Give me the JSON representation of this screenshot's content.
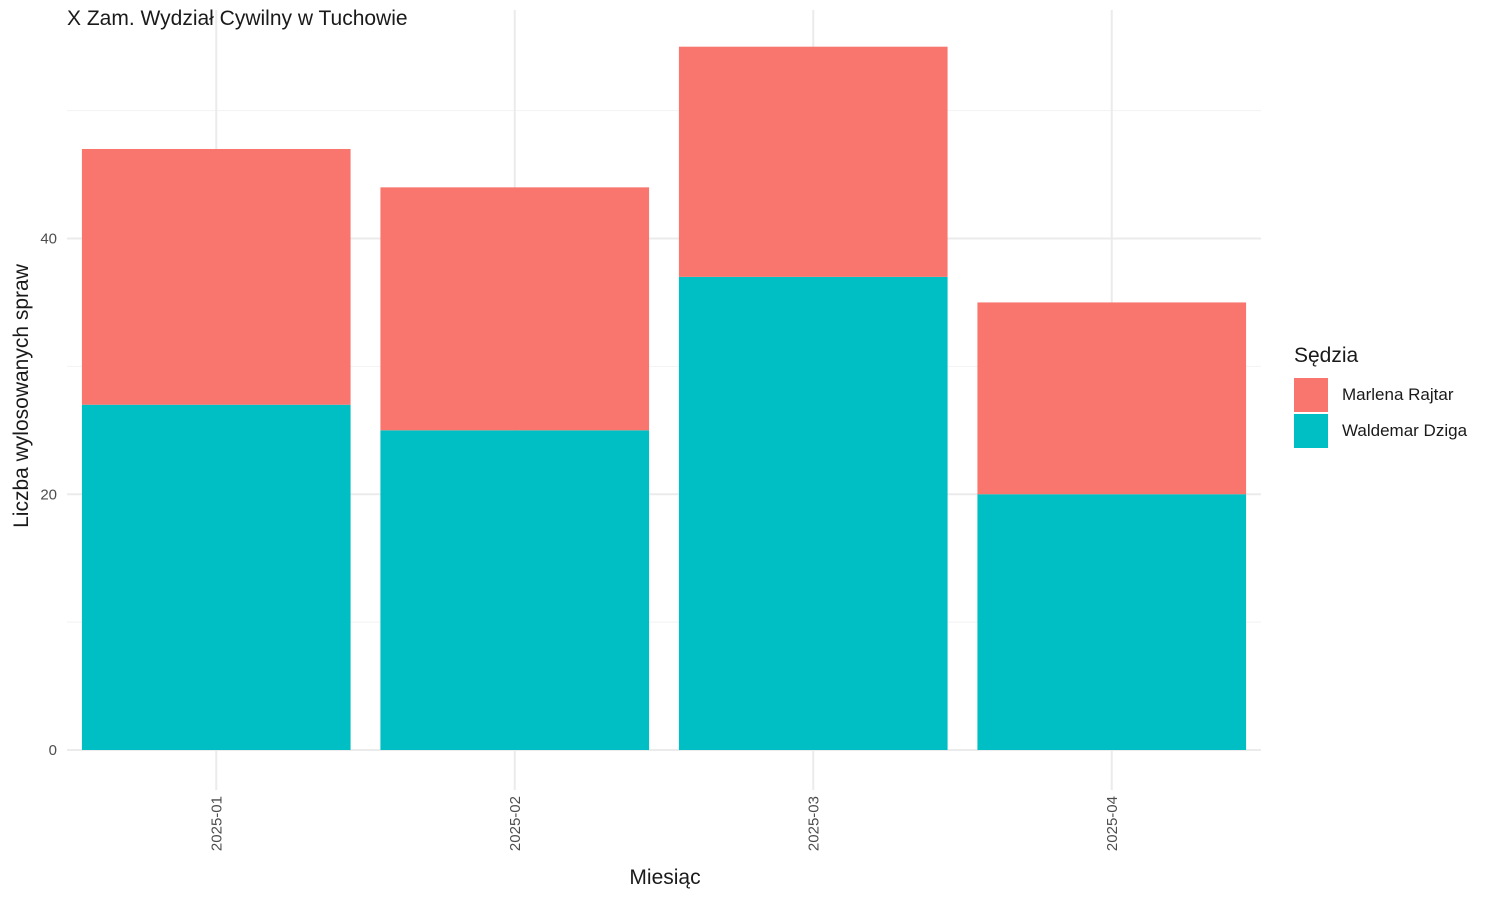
{
  "chart_data": {
    "type": "bar",
    "stacked": true,
    "title": "X Zam. Wydział Cywilny w Tuchowie",
    "xlabel": "Miesiąc",
    "ylabel": "Liczba wylosowanych spraw",
    "categories": [
      "2025-01",
      "2025-02",
      "2025-03",
      "2025-04"
    ],
    "series": [
      {
        "name": "Waldemar Dziga",
        "values": [
          27,
          25,
          37,
          20
        ],
        "color": "#00BFC4"
      },
      {
        "name": "Marlena Rajtar",
        "values": [
          20,
          19,
          18,
          15
        ],
        "color": "#F8766D"
      }
    ],
    "ylim": [
      0,
      55
    ],
    "yticks": [
      0,
      20,
      40
    ],
    "grid": true,
    "legend": {
      "title": "Sędzia",
      "position": "right",
      "items": [
        {
          "label": "Marlena Rajtar",
          "color": "#F8766D"
        },
        {
          "label": "Waldemar Dziga",
          "color": "#00BFC4"
        }
      ]
    }
  }
}
